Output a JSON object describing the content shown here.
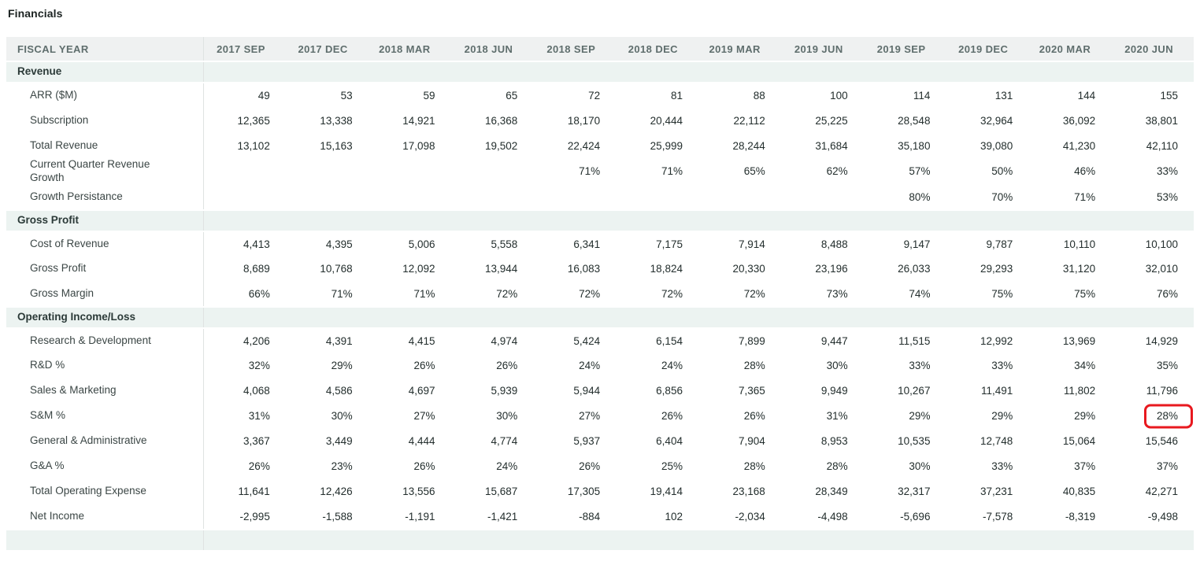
{
  "page": {
    "title": "Financials"
  },
  "colors": {
    "section_bg": "#ecf3f1",
    "header_bg": "#eff1f1",
    "divider": "#dfe3e2",
    "highlight_red": "#e8191f"
  },
  "highlight": {
    "row_label": "S&M %",
    "column": "2020 JUN",
    "color": "#e8191f"
  },
  "table": {
    "header": {
      "fiscal_year_label": "FISCAL YEAR",
      "columns": [
        "2017 SEP",
        "2017 DEC",
        "2018 MAR",
        "2018 JUN",
        "2018 SEP",
        "2018 DEC",
        "2019 MAR",
        "2019 JUN",
        "2019 SEP",
        "2019 DEC",
        "2020 MAR",
        "2020 JUN"
      ]
    },
    "rows": [
      {
        "type": "section",
        "label": "Revenue"
      },
      {
        "type": "data",
        "label": "ARR ($M)",
        "values": [
          "49",
          "53",
          "59",
          "65",
          "72",
          "81",
          "88",
          "100",
          "114",
          "131",
          "144",
          "155"
        ]
      },
      {
        "type": "data",
        "label": "Subscription",
        "values": [
          "12,365",
          "13,338",
          "14,921",
          "16,368",
          "18,170",
          "20,444",
          "22,112",
          "25,225",
          "28,548",
          "32,964",
          "36,092",
          "38,801"
        ]
      },
      {
        "type": "data",
        "label": "Total Revenue",
        "values": [
          "13,102",
          "15,163",
          "17,098",
          "19,502",
          "22,424",
          "25,999",
          "28,244",
          "31,684",
          "35,180",
          "39,080",
          "41,230",
          "42,110"
        ]
      },
      {
        "type": "data",
        "label": "Current Quarter Revenue Growth",
        "values": [
          "",
          "",
          "",
          "",
          "71%",
          "71%",
          "65%",
          "62%",
          "57%",
          "50%",
          "46%",
          "33%"
        ]
      },
      {
        "type": "data",
        "label": "Growth Persistance",
        "values": [
          "",
          "",
          "",
          "",
          "",
          "",
          "",
          "",
          "80%",
          "70%",
          "71%",
          "53%"
        ]
      },
      {
        "type": "section",
        "label": "Gross Profit"
      },
      {
        "type": "data",
        "label": "Cost of Revenue",
        "values": [
          "4,413",
          "4,395",
          "5,006",
          "5,558",
          "6,341",
          "7,175",
          "7,914",
          "8,488",
          "9,147",
          "9,787",
          "10,110",
          "10,100"
        ]
      },
      {
        "type": "data",
        "label": "Gross Profit",
        "values": [
          "8,689",
          "10,768",
          "12,092",
          "13,944",
          "16,083",
          "18,824",
          "20,330",
          "23,196",
          "26,033",
          "29,293",
          "31,120",
          "32,010"
        ]
      },
      {
        "type": "data",
        "label": "Gross Margin",
        "values": [
          "66%",
          "71%",
          "71%",
          "72%",
          "72%",
          "72%",
          "72%",
          "73%",
          "74%",
          "75%",
          "75%",
          "76%"
        ]
      },
      {
        "type": "section",
        "label": "Operating Income/Loss"
      },
      {
        "type": "data",
        "label": "Research & Development",
        "values": [
          "4,206",
          "4,391",
          "4,415",
          "4,974",
          "5,424",
          "6,154",
          "7,899",
          "9,447",
          "11,515",
          "12,992",
          "13,969",
          "14,929"
        ]
      },
      {
        "type": "data",
        "label": "R&D %",
        "values": [
          "32%",
          "29%",
          "26%",
          "26%",
          "24%",
          "24%",
          "28%",
          "30%",
          "33%",
          "33%",
          "34%",
          "35%"
        ]
      },
      {
        "type": "data",
        "label": "Sales & Marketing",
        "values": [
          "4,068",
          "4,586",
          "4,697",
          "5,939",
          "5,944",
          "6,856",
          "7,365",
          "9,949",
          "10,267",
          "11,491",
          "11,802",
          "11,796"
        ]
      },
      {
        "type": "data",
        "label": "S&M %",
        "values": [
          "31%",
          "30%",
          "27%",
          "30%",
          "27%",
          "26%",
          "26%",
          "31%",
          "29%",
          "29%",
          "29%",
          "28%"
        ],
        "highlight_col": 11
      },
      {
        "type": "data",
        "label": "General & Administrative",
        "values": [
          "3,367",
          "3,449",
          "4,444",
          "4,774",
          "5,937",
          "6,404",
          "7,904",
          "8,953",
          "10,535",
          "12,748",
          "15,064",
          "15,546"
        ]
      },
      {
        "type": "data",
        "label": "G&A %",
        "values": [
          "26%",
          "23%",
          "26%",
          "24%",
          "26%",
          "25%",
          "28%",
          "28%",
          "30%",
          "33%",
          "37%",
          "37%"
        ]
      },
      {
        "type": "data",
        "label": "Total Operating Expense",
        "values": [
          "11,641",
          "12,426",
          "13,556",
          "15,687",
          "17,305",
          "19,414",
          "23,168",
          "28,349",
          "32,317",
          "37,231",
          "40,835",
          "42,271"
        ]
      },
      {
        "type": "data",
        "label": "Net Income",
        "values": [
          "-2,995",
          "-1,588",
          "-1,191",
          "-1,421",
          "-884",
          "102",
          "-2,034",
          "-4,498",
          "-5,696",
          "-7,578",
          "-8,319",
          "-9,498"
        ]
      },
      {
        "type": "section",
        "label": ""
      }
    ]
  }
}
